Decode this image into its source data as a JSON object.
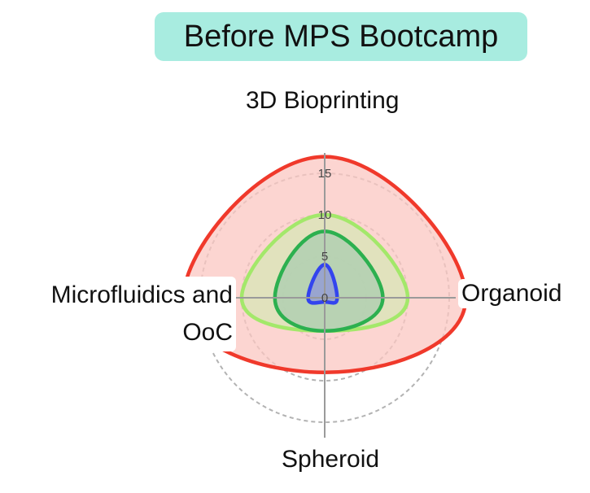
{
  "title": "Before MPS Bootcamp",
  "chart_data": {
    "type": "radar",
    "title": "Before MPS Bootcamp",
    "axes": [
      "3D Bioprinting",
      "Organoid",
      "Spheroid",
      "Microfluidics and OoC"
    ],
    "radial_ticks": [
      "0",
      "5",
      "10",
      "15"
    ],
    "rlim": [
      0,
      17
    ],
    "series": [
      {
        "values": [
          17,
          17,
          9,
          17
        ],
        "color": "#f0392b",
        "fill": "#fbc7c2"
      },
      {
        "values": [
          10,
          10,
          4,
          10
        ],
        "color": "#a3e86a",
        "fill": "#d8e6b5"
      },
      {
        "values": [
          8,
          7,
          4,
          6
        ],
        "color": "#2cb04f",
        "fill": "#a9ccb0"
      },
      {
        "values": [
          4,
          1.5,
          0.5,
          2
        ],
        "color": "#3344ee",
        "fill": "#8f95d8"
      }
    ],
    "grid": true
  }
}
